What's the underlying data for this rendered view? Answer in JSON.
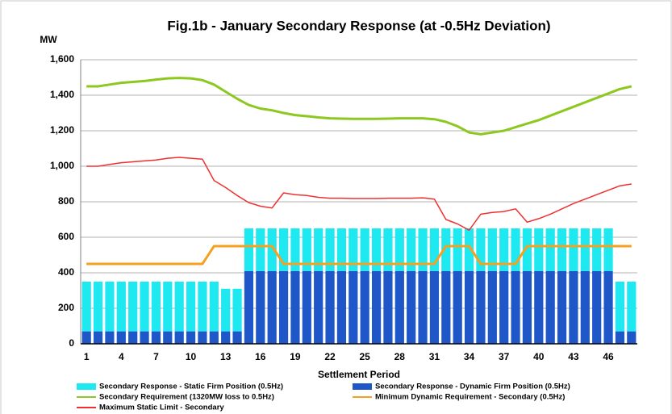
{
  "chart_data": {
    "type": "bar",
    "stacked": true,
    "title": "Fig.1b - January Secondary Response (at -0.5Hz Deviation)",
    "y_label": "MW",
    "x_label": "Settlement Period",
    "grid": true,
    "legend": "bottom",
    "categories": [
      1,
      null,
      null,
      4,
      null,
      null,
      7,
      null,
      null,
      10,
      null,
      null,
      13,
      null,
      null,
      16,
      null,
      null,
      19,
      null,
      null,
      22,
      null,
      null,
      25,
      null,
      null,
      28,
      null,
      null,
      31,
      null,
      null,
      34,
      null,
      null,
      37,
      null,
      null,
      40,
      null,
      null,
      43,
      null,
      null,
      46,
      null,
      null
    ],
    "ylim": [
      0,
      1600
    ],
    "yticks": [
      0,
      200,
      400,
      600,
      800,
      {
        "value": 1000,
        "label": "1,000"
      },
      {
        "value": 1200,
        "label": "1,200"
      },
      {
        "value": 1400,
        "label": "1,400"
      },
      {
        "value": 1600,
        "label": "1,600"
      }
    ],
    "series": [
      {
        "name": "Secondary Response - Static Firm Position (0.5Hz)",
        "type": "bar",
        "stack": 1,
        "color": "#1ee8f0",
        "values": [
          280,
          280,
          280,
          280,
          280,
          280,
          280,
          280,
          280,
          280,
          280,
          280,
          240,
          240,
          240,
          240,
          240,
          240,
          240,
          240,
          240,
          240,
          240,
          240,
          240,
          240,
          240,
          240,
          240,
          240,
          240,
          240,
          240,
          240,
          240,
          240,
          240,
          240,
          240,
          240,
          240,
          240,
          240,
          240,
          240,
          240,
          280,
          280
        ]
      },
      {
        "name": "Secondary Response - Dynamic Firm Position (0.5Hz)",
        "type": "bar",
        "stack": 0,
        "color": "#1f56c8",
        "values": [
          70,
          70,
          70,
          70,
          70,
          70,
          70,
          70,
          70,
          70,
          70,
          70,
          70,
          70,
          410,
          410,
          410,
          410,
          410,
          410,
          410,
          410,
          410,
          410,
          410,
          410,
          410,
          410,
          410,
          410,
          410,
          410,
          410,
          410,
          410,
          410,
          410,
          410,
          410,
          410,
          410,
          410,
          410,
          410,
          410,
          410,
          70,
          70
        ]
      },
      {
        "name": "Secondary Requirement  (1320MW  loss to 0.5Hz)",
        "type": "line",
        "color": "#8cc820",
        "values": [
          1450,
          1450,
          1460,
          1470,
          1475,
          1480,
          1488,
          1495,
          1497,
          1495,
          1485,
          1460,
          1420,
          1380,
          1345,
          1325,
          1315,
          1300,
          1288,
          1282,
          1275,
          1270,
          1268,
          1267,
          1267,
          1267,
          1268,
          1270,
          1270,
          1270,
          1265,
          1250,
          1225,
          1190,
          1180,
          1190,
          1200,
          1220,
          1240,
          1260,
          1285,
          1310,
          1335,
          1360,
          1385,
          1410,
          1435,
          1450
        ]
      },
      {
        "name": "Minimum Dynamic Requirement  - Secondary  (0.5Hz)",
        "type": "line",
        "color": "#f5a020",
        "values": [
          450,
          450,
          450,
          450,
          450,
          450,
          450,
          450,
          450,
          450,
          450,
          550,
          550,
          550,
          550,
          550,
          550,
          450,
          450,
          450,
          450,
          450,
          450,
          450,
          450,
          450,
          450,
          450,
          450,
          450,
          450,
          550,
          550,
          550,
          450,
          450,
          450,
          450,
          550,
          550,
          550,
          550,
          550,
          550,
          550,
          550,
          550,
          550
        ]
      },
      {
        "name": "Maximum Static Limit - Secondary",
        "type": "line",
        "color": "#f03030",
        "values": [
          1000,
          1000,
          1010,
          1020,
          1025,
          1030,
          1035,
          1045,
          1050,
          1045,
          1040,
          920,
          880,
          835,
          795,
          775,
          765,
          850,
          840,
          835,
          825,
          820,
          820,
          818,
          818,
          818,
          820,
          820,
          820,
          822,
          815,
          700,
          675,
          640,
          730,
          740,
          745,
          760,
          685,
          705,
          730,
          760,
          790,
          815,
          840,
          865,
          890,
          900
        ]
      }
    ]
  }
}
